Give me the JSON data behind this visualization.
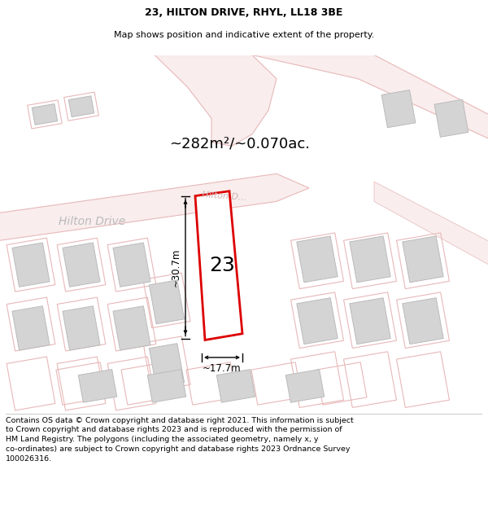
{
  "title": "23, HILTON DRIVE, RHYL, LL18 3BE",
  "subtitle": "Map shows position and indicative extent of the property.",
  "footer": "Contains OS data © Crown copyright and database right 2021. This information is subject\nto Crown copyright and database rights 2023 and is reproduced with the permission of\nHM Land Registry. The polygons (including the associated geometry, namely x, y\nco-ordinates) are subject to Crown copyright and database rights 2023 Ordnance Survey\n100026316.",
  "area_label": "~282m²/~0.070ac.",
  "number_label": "23",
  "dim_width_label": "~17.7m",
  "dim_height_label": "~30.7m",
  "street_label1": "Hilton Drive",
  "street_label2": "Hilton D...",
  "plot_color": "#dd0000",
  "road_fill": "#f9eded",
  "road_edge": "#e8b8b8",
  "building_fill": "#d8d8d8",
  "building_edge": "#bbbbbb",
  "title_fontsize": 9,
  "subtitle_fontsize": 8,
  "footer_fontsize": 6.8,
  "area_fontsize": 13,
  "number_fontsize": 18,
  "street_fontsize": 10,
  "dim_fontsize": 8.5
}
